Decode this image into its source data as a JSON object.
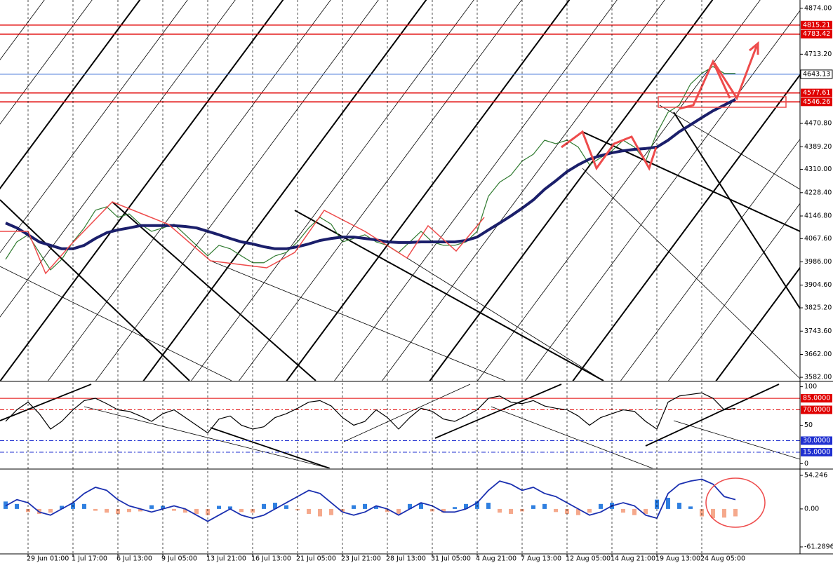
{
  "chart_data": [
    {
      "type": "line",
      "ylim": [
        3570,
        4903
      ],
      "yticks": [
        {
          "value": 4874,
          "label": "4874.00"
        },
        {
          "value": 4713.2,
          "label": "4713.20"
        },
        {
          "value": 4470.8,
          "label": "4470.80"
        },
        {
          "value": 4389.2,
          "label": "4389.20"
        },
        {
          "value": 4310,
          "label": "4310.00"
        },
        {
          "value": 4228.4,
          "label": "4228.40"
        },
        {
          "value": 4146.8,
          "label": "4146.80"
        },
        {
          "value": 4067.6,
          "label": "4067.60"
        },
        {
          "value": 3986,
          "label": "3986.00"
        },
        {
          "value": 3904.6,
          "label": "3904.60"
        },
        {
          "value": 3825.2,
          "label": "3825.20"
        },
        {
          "value": 3743.6,
          "label": "3743.60"
        },
        {
          "value": 3662,
          "label": "3662.00"
        },
        {
          "value": 3582,
          "label": "3582.00"
        }
      ],
      "levels": [
        {
          "value": 4815.21,
          "color": "#e00000"
        },
        {
          "value": 4783.42,
          "color": "#e00000"
        },
        {
          "value": 4643.13,
          "color": "#3a6fd8"
        },
        {
          "value": 4577.61,
          "color": "#e00000"
        },
        {
          "value": 4546.26,
          "color": "#e00000"
        }
      ],
      "series": [
        {
          "color": "#2f7a2f",
          "values": [
            3995,
            4056,
            4081,
            4019,
            3958,
            3995,
            4056,
            4105,
            4167,
            4179,
            4142,
            4154,
            4118,
            4093,
            4105,
            4118,
            4081,
            4044,
            4007,
            4044,
            4032,
            4007,
            3983,
            3983,
            4007,
            4019,
            4056,
            4105,
            4142,
            4118,
            4056,
            4068,
            4081,
            4056,
            4044,
            4019,
            4056,
            4093,
            4056,
            4044,
            4044,
            4056,
            4093,
            4216,
            4265,
            4290,
            4339,
            4363,
            4412,
            4400,
            4412,
            4388,
            4326,
            4351,
            4375,
            4412,
            4388,
            4339,
            4437,
            4510,
            4535,
            4609,
            4646,
            4670,
            4646,
            4646
          ]
        },
        {
          "color": "#1b1f6b",
          "values": [
            4122,
            4105,
            4081,
            4056,
            4044,
            4032,
            4032,
            4044,
            4068,
            4088,
            4098,
            4105,
            4113,
            4113,
            4113,
            4113,
            4110,
            4105,
            4093,
            4081,
            4068,
            4056,
            4049,
            4039,
            4032,
            4032,
            4039,
            4049,
            4061,
            4068,
            4073,
            4073,
            4068,
            4063,
            4056,
            4054,
            4054,
            4056,
            4056,
            4056,
            4056,
            4061,
            4073,
            4098,
            4122,
            4147,
            4174,
            4203,
            4240,
            4270,
            4302,
            4326,
            4346,
            4358,
            4368,
            4375,
            4380,
            4383,
            4388,
            4412,
            4442,
            4466,
            4491,
            4515,
            4535,
            4555
          ]
        }
      ]
    },
    {
      "type": "line",
      "ylim": [
        -6,
        106
      ],
      "yticks": [
        100,
        50,
        0
      ],
      "levels": [
        {
          "value": 85,
          "label": "85.0000",
          "color": "#e00000",
          "style": "solid"
        },
        {
          "value": 70,
          "label": "70.0000",
          "color": "#e00000",
          "style": "dashdot"
        },
        {
          "value": 30,
          "label": "30.0000",
          "color": "#1f2fd0",
          "style": "dashdot"
        },
        {
          "value": 15,
          "label": "15.0000",
          "color": "#1f2fd0",
          "style": "dashdot"
        }
      ],
      "series": [
        {
          "color": "#000000",
          "values": [
            55,
            70,
            80,
            65,
            45,
            55,
            70,
            82,
            85,
            78,
            70,
            68,
            62,
            55,
            65,
            70,
            60,
            50,
            40,
            58,
            62,
            50,
            45,
            48,
            60,
            65,
            72,
            80,
            82,
            75,
            60,
            50,
            55,
            70,
            60,
            45,
            60,
            72,
            68,
            58,
            55,
            62,
            70,
            85,
            88,
            80,
            78,
            82,
            75,
            72,
            70,
            62,
            50,
            60,
            65,
            70,
            68,
            55,
            45,
            80,
            88,
            90,
            92,
            85,
            70,
            72
          ]
        }
      ]
    },
    {
      "type": "bar",
      "ylim": [
        -72.6,
        63.3
      ],
      "yticks": [
        54.246,
        {
          "value": 0,
          "label": "0.00"
        },
        -61.2896
      ],
      "positive_color": "#2f7fe0",
      "negative_color": "#f5a98c",
      "categories": [
        null,
        null,
        "29 Jun 01:00",
        null,
        null,
        null,
        "1 Jul 17:00",
        null,
        null,
        null,
        "6 Jul 13:00",
        null,
        null,
        null,
        "9 Jul 05:00",
        null,
        null,
        null,
        "13 Jul 21:00",
        null,
        null,
        null,
        "16 Jul 13:00",
        null,
        null,
        null,
        "21 Jul 05:00",
        null,
        null,
        null,
        "23 Jul 21:00",
        null,
        null,
        null,
        "28 Jul 13:00",
        null,
        null,
        null,
        "31 Jul 05:00",
        null,
        null,
        null,
        "4 Aug 21:00",
        null,
        null,
        null,
        "7 Aug 13:00",
        null,
        null,
        null,
        "12 Aug 05:00",
        null,
        null,
        null,
        "14 Aug 21:00",
        null,
        null,
        null,
        "19 Aug 13:00",
        null,
        null,
        null,
        "24 Aug 05:00",
        null,
        null,
        null
      ],
      "values": [
        12,
        8,
        -5,
        -8,
        -6,
        5,
        10,
        8,
        -3,
        -6,
        -8,
        -5,
        -4,
        6,
        5,
        -3,
        -6,
        -8,
        -10,
        5,
        4,
        -5,
        -6,
        8,
        10,
        6,
        -2,
        -8,
        -12,
        -10,
        -5,
        6,
        8,
        4,
        -5,
        -8,
        8,
        10,
        -4,
        -6,
        3,
        8,
        12,
        10,
        -6,
        -8,
        -4,
        6,
        8,
        -5,
        -8,
        -10,
        -6,
        8,
        10,
        -6,
        -10,
        -8,
        15,
        18,
        10,
        4,
        -12,
        -15,
        -14,
        -12
      ],
      "series": [
        {
          "color": "#1a2fb0",
          "values": [
            5,
            15,
            10,
            -5,
            -10,
            0,
            10,
            25,
            35,
            30,
            15,
            5,
            0,
            -5,
            0,
            5,
            0,
            -10,
            -20,
            -10,
            0,
            -10,
            -15,
            -10,
            0,
            10,
            20,
            30,
            25,
            10,
            -5,
            -10,
            -5,
            5,
            0,
            -10,
            0,
            10,
            5,
            -5,
            -5,
            0,
            10,
            30,
            45,
            40,
            30,
            35,
            25,
            20,
            10,
            0,
            -10,
            -5,
            5,
            10,
            5,
            -10,
            -15,
            25,
            40,
            45,
            48,
            40,
            20,
            15
          ]
        }
      ]
    }
  ]
}
